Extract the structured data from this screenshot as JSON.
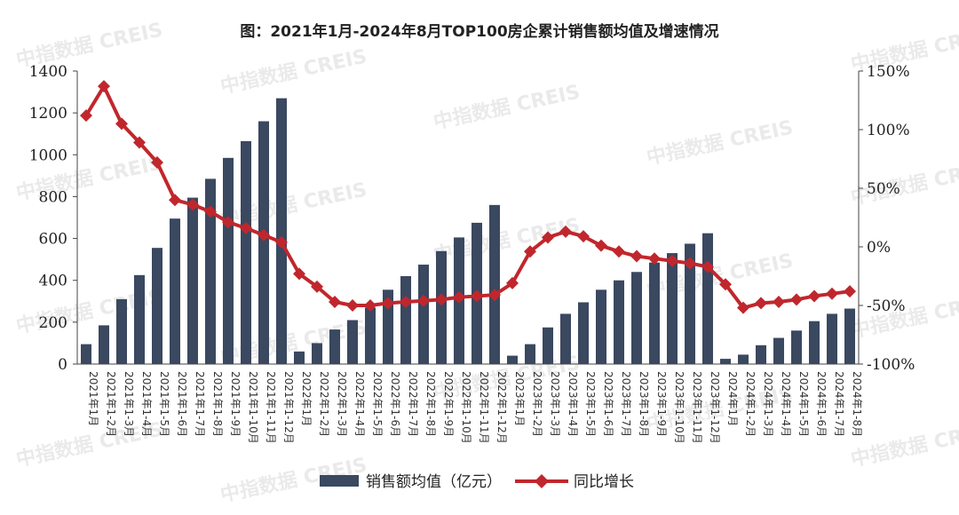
{
  "chart_data": {
    "type": "bar",
    "title": "图：2021年1月-2024年8月TOP100房企累计销售额均值及增速情况",
    "watermark": "中指数据 CREIS",
    "categories": [
      "2021年1月",
      "2021年1-2月",
      "2021年1-3月",
      "2021年1-4月",
      "2021年1-5月",
      "2021年1-6月",
      "2021年1-7月",
      "2021年1-8月",
      "2021年1-9月",
      "2021年1-10月",
      "2021年1-11月",
      "2021年1-12月",
      "2022年1月",
      "2022年1-2月",
      "2022年1-3月",
      "2022年1-4月",
      "2022年1-5月",
      "2022年1-6月",
      "2022年1-7月",
      "2022年1-8月",
      "2022年1-9月",
      "2022年1-10月",
      "2022年1-11月",
      "2022年1-12月",
      "2023年1月",
      "2023年1-2月",
      "2023年1-3月",
      "2023年1-4月",
      "2023年1-5月",
      "2023年1-6月",
      "2023年1-7月",
      "2023年1-8月",
      "2023年1-9月",
      "2023年1-10月",
      "2023年1-11月",
      "2023年1-12月",
      "2024年1月",
      "2024年1-2月",
      "2024年1-3月",
      "2024年1-4月",
      "2024年1-5月",
      "2024年1-6月",
      "2024年1-7月",
      "2024年1-8月"
    ],
    "series": [
      {
        "name": "销售额均值（亿元）",
        "type": "bar",
        "axis": "left",
        "color": "#3a4860",
        "values": [
          95,
          185,
          310,
          425,
          555,
          695,
          795,
          885,
          985,
          1065,
          1160,
          1270,
          60,
          100,
          165,
          210,
          270,
          355,
          420,
          475,
          540,
          605,
          675,
          760,
          40,
          95,
          175,
          240,
          295,
          355,
          400,
          440,
          485,
          530,
          575,
          625,
          25,
          45,
          90,
          125,
          160,
          205,
          240,
          265
        ]
      },
      {
        "name": "同比增长",
        "type": "line",
        "axis": "right",
        "color": "#c0272d",
        "values": [
          112,
          137,
          105,
          89,
          72,
          40,
          36,
          30,
          21,
          16,
          10,
          4,
          -23,
          -34,
          -47,
          -50,
          -50,
          -48,
          -47,
          -46,
          -45,
          -43,
          -42,
          -41,
          -31,
          -4,
          8,
          13,
          9,
          1,
          -4,
          -8,
          -10,
          -12,
          -14,
          -17,
          -32,
          -52,
          -48,
          -47,
          -45,
          -42,
          -40,
          -38
        ]
      }
    ],
    "y_left": {
      "min": 0,
      "max": 1400,
      "ticks": [
        0,
        200,
        400,
        600,
        800,
        1000,
        1200,
        1400
      ]
    },
    "y_right": {
      "min": -100,
      "max": 150,
      "ticks": [
        -100,
        -50,
        0,
        50,
        100,
        150
      ],
      "tick_labels": [
        "-100%",
        "-50%",
        "0%",
        "50%",
        "100%",
        "150%"
      ]
    },
    "legend": {
      "position": "bottom",
      "labels": [
        "销售额均值（亿元）",
        "同比增长"
      ]
    },
    "grid": false
  }
}
